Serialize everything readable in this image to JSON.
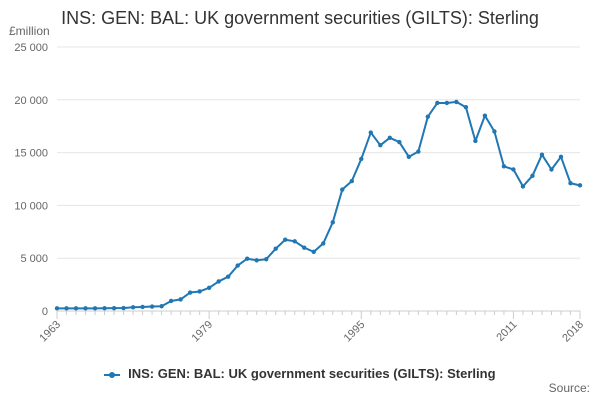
{
  "chart_data": {
    "type": "line",
    "title": "INS: GEN: BAL: UK government securities (GILTS): Sterling",
    "ylabel": "£million",
    "xlabel": "",
    "ylim": [
      0,
      25000
    ],
    "xlim": [
      1963,
      2018
    ],
    "y_ticks": [
      0,
      5000,
      10000,
      15000,
      20000,
      25000
    ],
    "y_tick_labels": [
      "0",
      "5 000",
      "10 000",
      "15 000",
      "20 000",
      "25 000"
    ],
    "x_ticks": [
      1963,
      1979,
      1995,
      2011,
      2018
    ],
    "x_tick_labels": [
      "1963",
      "1979",
      "1995",
      "2011",
      "2018"
    ],
    "grid": "horizontal",
    "legend_position": "bottom",
    "series": [
      {
        "name": "INS: GEN: BAL: UK government securities (GILTS): Sterling",
        "color": "#1f77b4",
        "x": [
          1963,
          1964,
          1965,
          1966,
          1967,
          1968,
          1969,
          1970,
          1971,
          1972,
          1973,
          1974,
          1975,
          1976,
          1977,
          1978,
          1979,
          1980,
          1981,
          1982,
          1983,
          1984,
          1985,
          1986,
          1987,
          1988,
          1989,
          1990,
          1991,
          1992,
          1993,
          1994,
          1995,
          1996,
          1997,
          1998,
          1999,
          2000,
          2001,
          2002,
          2003,
          2004,
          2005,
          2006,
          2007,
          2008,
          2009,
          2010,
          2011,
          2012,
          2013,
          2014,
          2015,
          2016,
          2017,
          2018
        ],
        "values": [
          250,
          250,
          250,
          250,
          250,
          260,
          270,
          280,
          350,
          380,
          420,
          450,
          950,
          1100,
          1750,
          1850,
          2200,
          2800,
          3250,
          4300,
          4950,
          4800,
          4900,
          5900,
          6750,
          6600,
          6000,
          5600,
          6400,
          8400,
          11500,
          12300,
          14400,
          16900,
          15700,
          16400,
          16000,
          14600,
          15100,
          18400,
          19700,
          19700,
          19800,
          19300,
          16100,
          18500,
          17000,
          13700,
          13400,
          11800,
          12800,
          14800,
          13400,
          14600,
          12100,
          11900
        ]
      }
    ],
    "source_label": "Source:"
  }
}
